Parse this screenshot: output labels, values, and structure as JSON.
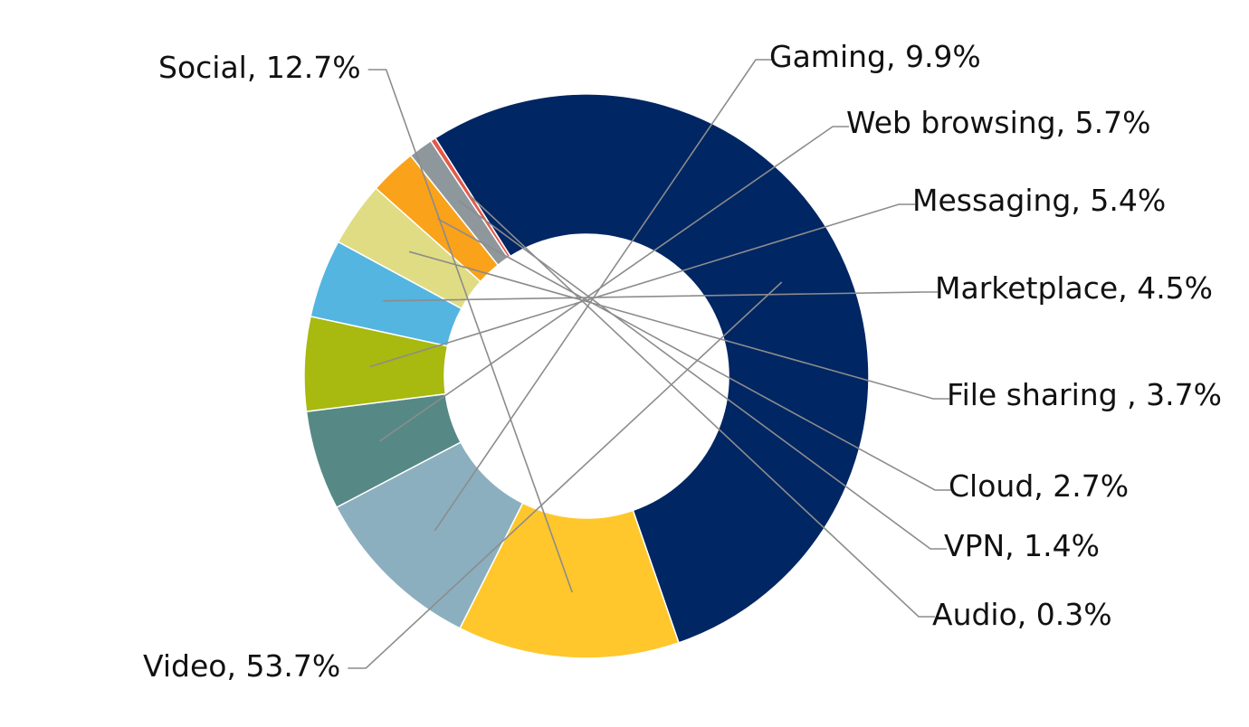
{
  "chart_data": {
    "type": "pie",
    "donut": true,
    "title": "",
    "legend": "none",
    "label_format": "{name}, {value}%",
    "series": [
      {
        "name": "Video",
        "value": 53.7,
        "label": "Video, 53.7%",
        "color": "#002663"
      },
      {
        "name": "Social",
        "value": 12.7,
        "label": "Social, 12.7%",
        "color": "#FFC72C"
      },
      {
        "name": "Gaming",
        "value": 9.9,
        "label": "Gaming, 9.9%",
        "color": "#8BAFBF"
      },
      {
        "name": "Web browsing",
        "value": 5.7,
        "label": "Web browsing, 5.7%",
        "color": "#568985"
      },
      {
        "name": "Messaging",
        "value": 5.4,
        "label": "Messaging, 5.4%",
        "color": "#A8B90F"
      },
      {
        "name": "Marketplace",
        "value": 4.5,
        "label": "Marketplace, 4.5%",
        "color": "#53B5E0"
      },
      {
        "name": "File sharing",
        "value": 3.7,
        "label": "File sharing , 3.7%",
        "color": "#E0DC83"
      },
      {
        "name": "Cloud",
        "value": 2.7,
        "label": "Cloud, 2.7%",
        "color": "#F9A21A"
      },
      {
        "name": "VPN",
        "value": 1.4,
        "label": "VPN, 1.4%",
        "color": "#8D979C"
      },
      {
        "name": "Audio",
        "value": 0.3,
        "label": "Audio, 0.3%",
        "color": "#E4584A"
      }
    ]
  }
}
